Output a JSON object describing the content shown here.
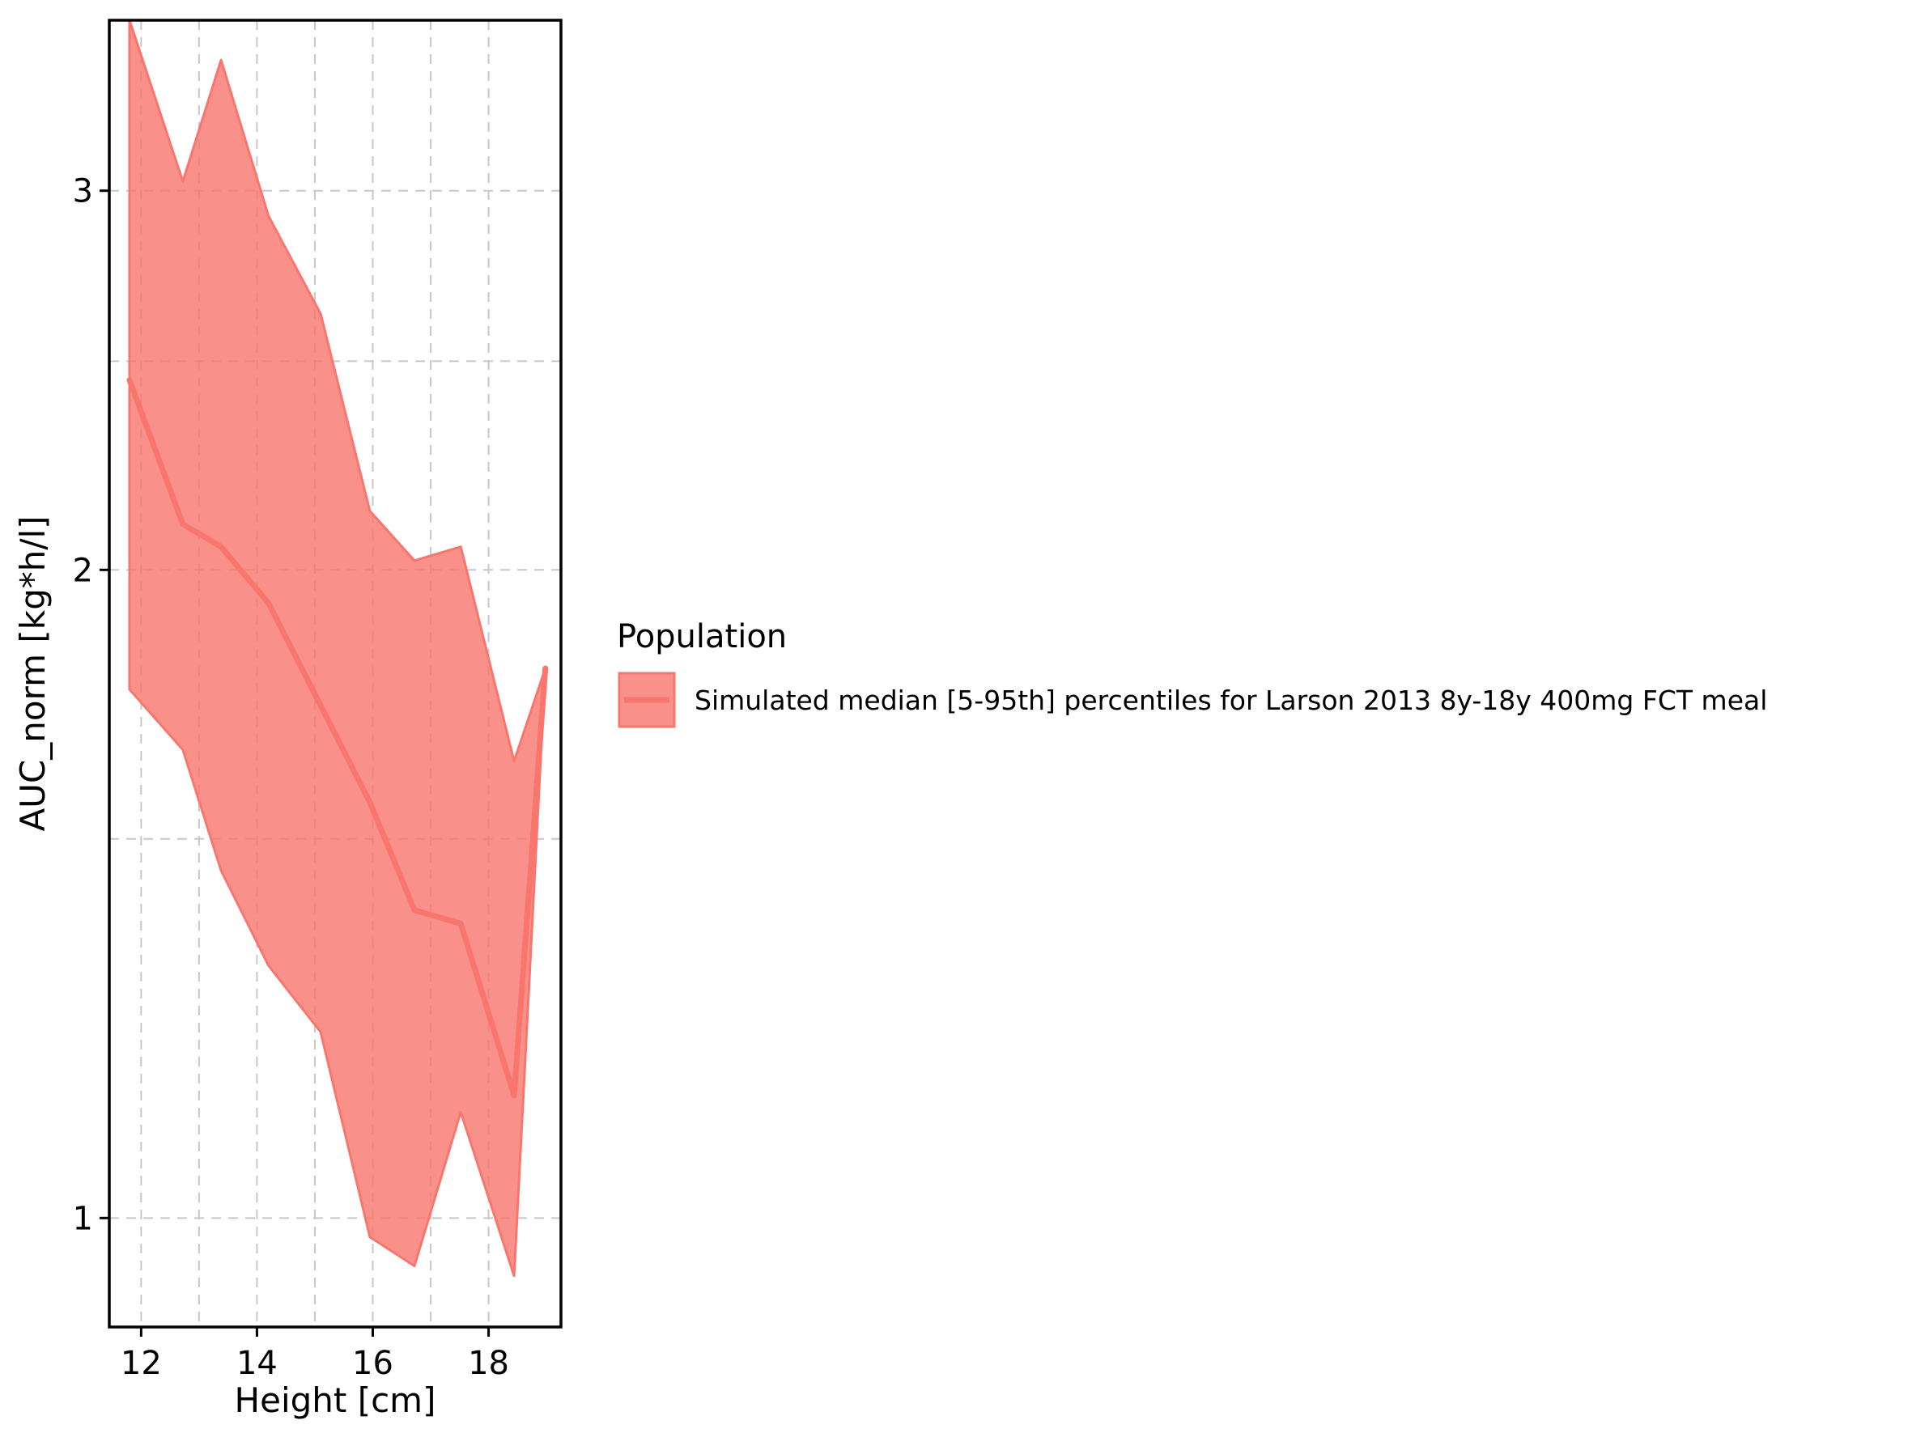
{
  "chart_data": {
    "type": "area",
    "title": "",
    "xlabel": "Height [cm]",
    "ylabel": "AUC_norm [kg*h/l]",
    "y_scale": "log",
    "xlim": [
      11.45,
      19.25
    ],
    "ylim": [
      0.89,
      3.6
    ],
    "x_ticks": [
      12,
      14,
      16,
      18
    ],
    "x_tick_labels": [
      "12",
      "14",
      "16",
      "18"
    ],
    "x_minor_grid": [
      13,
      15,
      17
    ],
    "y_ticks": [
      1,
      2,
      3
    ],
    "y_tick_labels": [
      "1",
      "2",
      "3"
    ],
    "y_minor_grid": [
      1.5,
      2.5
    ],
    "grid": true,
    "legend": {
      "title": "Population",
      "position": "right",
      "entries": [
        "Simulated median [5-95th] percentiles for Larson 2013 8y-18y 400mg FCT meal"
      ]
    },
    "colors": {
      "fill": "#f8766d",
      "fill_opacity": 0.8,
      "line": "#f8766d"
    },
    "series": [
      {
        "name": "Simulated median [5-95th] percentiles for Larson 2013 8y-18y 400mg FCT meal",
        "x": [
          11.8,
          12.72,
          13.38,
          14.2,
          15.1,
          15.95,
          16.72,
          17.52,
          18.44,
          18.98
        ],
        "median": [
          2.45,
          2.1,
          2.05,
          1.93,
          1.73,
          1.56,
          1.39,
          1.37,
          1.14,
          1.8
        ],
        "lower": [
          1.76,
          1.65,
          1.45,
          1.31,
          1.22,
          0.98,
          0.95,
          1.12,
          0.94,
          1.8
        ],
        "upper": [
          3.6,
          3.03,
          3.45,
          2.92,
          2.63,
          2.13,
          2.02,
          2.05,
          1.63,
          1.8
        ]
      }
    ]
  }
}
